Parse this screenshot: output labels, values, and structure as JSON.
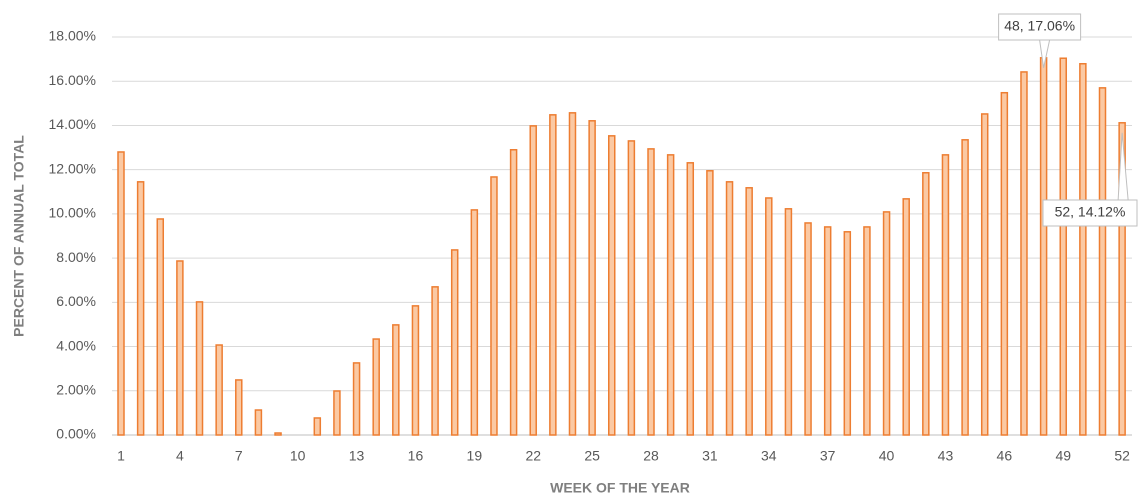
{
  "chart_data": {
    "type": "bar",
    "x_label": "WEEK OF THE YEAR",
    "y_label": "PERCENT OF ANNUAL TOTAL",
    "categories": [
      "1",
      null,
      null,
      "4",
      null,
      null,
      "7",
      null,
      null,
      "10",
      null,
      null,
      "13",
      null,
      null,
      "16",
      null,
      null,
      "19",
      null,
      null,
      "22",
      null,
      null,
      "25",
      null,
      null,
      "28",
      null,
      null,
      "31",
      null,
      null,
      "34",
      null,
      null,
      "37",
      null,
      null,
      "40",
      null,
      null,
      "43",
      null,
      null,
      "46",
      null,
      null,
      "49",
      null,
      null,
      "52"
    ],
    "values": [
      12.8,
      11.45,
      9.77,
      7.87,
      6.02,
      4.07,
      2.49,
      1.13,
      0.09,
      0,
      0.77,
      1.99,
      3.26,
      4.34,
      4.98,
      5.84,
      6.7,
      8.37,
      10.18,
      11.67,
      12.9,
      13.98,
      14.48,
      14.57,
      14.21,
      13.53,
      13.3,
      12.94,
      12.67,
      12.31,
      11.95,
      11.45,
      11.18,
      10.72,
      10.23,
      9.59,
      9.41,
      9.19,
      9.41,
      10.09,
      10.68,
      11.86,
      12.67,
      13.35,
      14.52,
      15.48,
      16.42,
      17.06,
      17.04,
      16.79,
      15.7,
      14.12
    ],
    "value_labels": [
      null,
      null,
      null,
      null,
      null,
      null,
      null,
      null,
      null,
      null,
      null,
      null,
      null,
      null,
      null,
      null,
      null,
      null,
      null,
      null,
      null,
      null,
      null,
      null,
      null,
      null,
      null,
      null,
      null,
      null,
      null,
      null,
      null,
      null,
      null,
      null,
      null,
      null,
      null,
      null,
      null,
      null,
      null,
      null,
      null,
      null,
      null,
      "48, 17.06%",
      null,
      null,
      null,
      "52, 14.12%"
    ],
    "color": "#ed7d31",
    "fill": "#fbc9a3",
    "ylim": [
      0,
      18
    ],
    "yticks": [
      {
        "value": 0,
        "label": "0.00%"
      },
      {
        "value": 2,
        "label": "2.00%"
      },
      {
        "value": 4,
        "label": "4.00%"
      },
      {
        "value": 6,
        "label": "6.00%"
      },
      {
        "value": 8,
        "label": "8.00%"
      },
      {
        "value": 10,
        "label": "10.00%"
      },
      {
        "value": 12,
        "label": "12.00%"
      },
      {
        "value": 14,
        "label": "14.00%"
      },
      {
        "value": 16,
        "label": "16.00%"
      },
      {
        "value": 18,
        "label": "18.00%"
      }
    ],
    "grid": true
  }
}
